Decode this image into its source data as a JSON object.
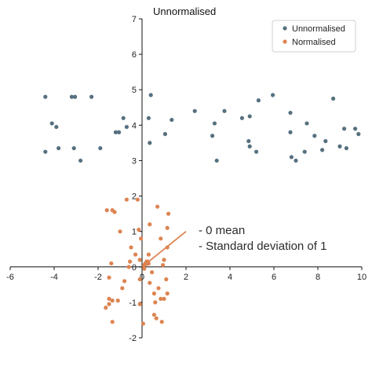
{
  "chart_data": {
    "type": "scatter",
    "title": "Unnormalised",
    "xlim": [
      -6,
      10
    ],
    "ylim": [
      -2,
      7
    ],
    "x_ticks": [
      "-6",
      "-4",
      "-2",
      "0",
      "2",
      "4",
      "6",
      "8",
      "10"
    ],
    "y_ticks": [
      "-2",
      "-1",
      "0",
      "1",
      "2",
      "3",
      "4",
      "5",
      "6",
      "7"
    ],
    "grid": false,
    "legend_position": "top-right",
    "annotations": [
      "- 0 mean",
      "- Standard deviation of 1"
    ],
    "arrow": {
      "from": [
        0,
        0
      ],
      "to": [
        2,
        1
      ],
      "color": "#dd8452"
    },
    "series": [
      {
        "name": "Unnormalised",
        "color": "#56707f",
        "points": [
          [
            -4.4,
            4.8
          ],
          [
            -4.4,
            3.25
          ],
          [
            -4.1,
            4.05
          ],
          [
            -3.9,
            3.95
          ],
          [
            -3.8,
            3.35
          ],
          [
            -3.2,
            4.8
          ],
          [
            -3.05,
            4.8
          ],
          [
            -3.1,
            3.35
          ],
          [
            -2.8,
            3.0
          ],
          [
            -2.3,
            4.8
          ],
          [
            -1.9,
            3.35
          ],
          [
            -1.2,
            3.8
          ],
          [
            -1.05,
            3.8
          ],
          [
            -0.85,
            4.2
          ],
          [
            -0.7,
            3.95
          ],
          [
            0.3,
            4.2
          ],
          [
            0.35,
            3.5
          ],
          [
            0.4,
            4.85
          ],
          [
            1.05,
            3.75
          ],
          [
            1.35,
            4.15
          ],
          [
            2.4,
            4.4
          ],
          [
            3.2,
            3.7
          ],
          [
            3.3,
            4.05
          ],
          [
            3.4,
            3.0
          ],
          [
            3.75,
            4.4
          ],
          [
            4.55,
            4.2
          ],
          [
            4.85,
            3.55
          ],
          [
            4.9,
            3.4
          ],
          [
            4.9,
            4.25
          ],
          [
            5.2,
            3.25
          ],
          [
            5.3,
            4.7
          ],
          [
            5.95,
            4.85
          ],
          [
            6.75,
            4.35
          ],
          [
            6.75,
            3.8
          ],
          [
            6.8,
            3.1
          ],
          [
            7.0,
            3.0
          ],
          [
            7.4,
            3.25
          ],
          [
            7.5,
            4.05
          ],
          [
            7.85,
            3.7
          ],
          [
            8.2,
            3.3
          ],
          [
            8.35,
            3.55
          ],
          [
            8.7,
            4.75
          ],
          [
            9.0,
            3.4
          ],
          [
            9.2,
            3.9
          ],
          [
            9.3,
            3.35
          ],
          [
            9.7,
            3.9
          ],
          [
            9.85,
            3.75
          ]
        ]
      },
      {
        "name": "Normalised",
        "color": "#dd8452",
        "points": [
          [
            -1.6,
            1.6
          ],
          [
            -1.35,
            1.6
          ],
          [
            -1.25,
            1.55
          ],
          [
            -0.7,
            1.9
          ],
          [
            -0.2,
            1.9
          ],
          [
            0.7,
            1.7
          ],
          [
            0.35,
            1.2
          ],
          [
            0.3,
            0.35
          ],
          [
            -0.05,
            0.8
          ],
          [
            -0.1,
            0.2
          ],
          [
            0.1,
            0.05
          ],
          [
            0.15,
            0.1
          ],
          [
            0.25,
            0.15
          ],
          [
            0.3,
            0.1
          ],
          [
            -0.3,
            0.35
          ],
          [
            -0.5,
            0.55
          ],
          [
            -0.55,
            0.15
          ],
          [
            -1.0,
            1.0
          ],
          [
            -0.15,
            1.05
          ],
          [
            1.2,
            1.5
          ],
          [
            1.15,
            1.1
          ],
          [
            0.85,
            0.8
          ],
          [
            1.15,
            0.55
          ],
          [
            1.0,
            0.2
          ],
          [
            0.95,
            0.05
          ],
          [
            -0.8,
            -0.4
          ],
          [
            -0.9,
            -0.6
          ],
          [
            -1.5,
            -0.3
          ],
          [
            -0.6,
            0.0
          ],
          [
            -1.4,
            0.1
          ],
          [
            -1.5,
            -0.9
          ],
          [
            -1.5,
            -1.05
          ],
          [
            -1.35,
            -0.95
          ],
          [
            -1.35,
            -1.55
          ],
          [
            -1.65,
            -1.15
          ],
          [
            -1.1,
            -0.95
          ],
          [
            -0.1,
            -0.35
          ],
          [
            -0.1,
            -1.05
          ],
          [
            0.05,
            -1.6
          ],
          [
            0.35,
            -0.45
          ],
          [
            0.55,
            -0.75
          ],
          [
            0.6,
            -1.0
          ],
          [
            0.55,
            -1.35
          ],
          [
            0.75,
            -0.6
          ],
          [
            0.85,
            -0.9
          ],
          [
            1.0,
            -0.9
          ],
          [
            1.1,
            -0.35
          ],
          [
            1.15,
            -0.75
          ],
          [
            0.65,
            -1.45
          ],
          [
            0.9,
            -1.55
          ],
          [
            0.45,
            -0.15
          ],
          [
            0.1,
            -0.05
          ]
        ]
      }
    ]
  }
}
